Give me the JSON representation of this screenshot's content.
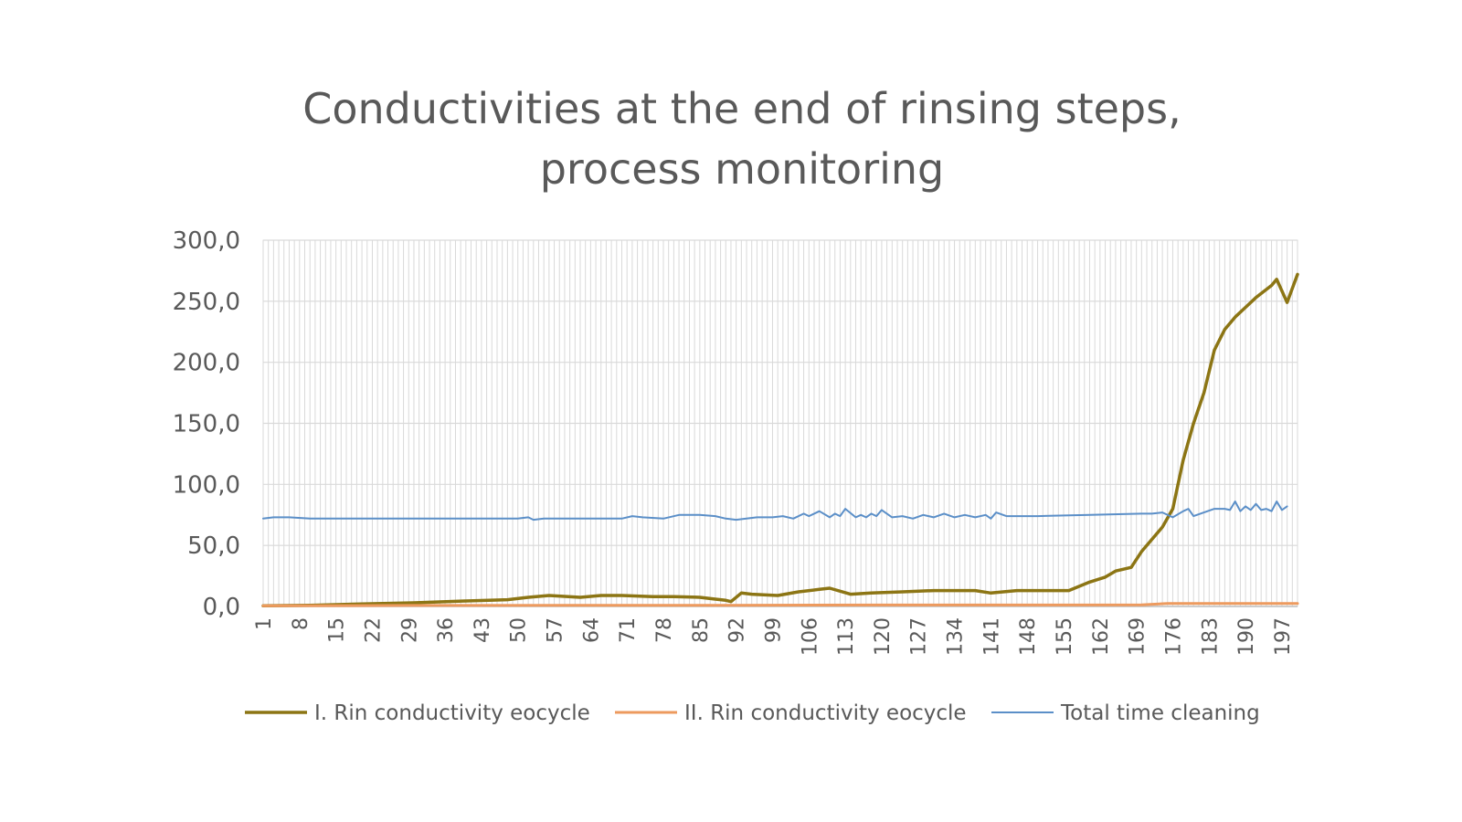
{
  "chart_data": {
    "type": "line",
    "title_lines": [
      "Conductivities at the end of rinsing steps,",
      "process monitoring"
    ],
    "xlabel": "",
    "ylabel": "",
    "ylim": [
      0,
      300
    ],
    "y_ticks": [
      "0,0",
      "50,0",
      "100,0",
      "150,0",
      "200,0",
      "250,0",
      "300,0"
    ],
    "x_range": [
      1,
      200
    ],
    "x_ticks": [
      1,
      8,
      15,
      22,
      29,
      36,
      43,
      50,
      57,
      64,
      71,
      78,
      85,
      92,
      99,
      106,
      113,
      120,
      127,
      134,
      141,
      148,
      155,
      162,
      169,
      176,
      183,
      190,
      197
    ],
    "grid": true,
    "legend_position": "bottom",
    "series": [
      {
        "name": "I. Rin conductivity eocycle",
        "color": "#8c7514",
        "x": [
          1,
          10,
          20,
          30,
          40,
          48,
          52,
          56,
          62,
          66,
          70,
          76,
          80,
          85,
          88,
          90,
          91,
          93,
          95,
          100,
          104,
          108,
          110,
          114,
          118,
          124,
          130,
          138,
          141,
          146,
          150,
          156,
          160,
          163,
          165,
          167,
          168,
          170,
          172,
          174,
          176,
          178,
          180,
          182,
          184,
          186,
          188,
          190,
          192,
          195,
          196,
          198,
          200
        ],
        "y": [
          0.5,
          1,
          2,
          3,
          4.5,
          5.5,
          7.5,
          9,
          7.5,
          9,
          9,
          8,
          8,
          7.5,
          6,
          5,
          4,
          11,
          10,
          9,
          12,
          14,
          15,
          10,
          11,
          12,
          13,
          13,
          11,
          13,
          13,
          13,
          20,
          24,
          29,
          31,
          32,
          45,
          55,
          65,
          80,
          120,
          150,
          175,
          210,
          227,
          237,
          245,
          253,
          263,
          268,
          249,
          272
        ]
      },
      {
        "name": "II. Rin conductivity eocycle",
        "color": "#ed9a5e",
        "x": [
          1,
          30,
          60,
          90,
          120,
          150,
          170,
          175,
          185,
          200
        ],
        "y": [
          0.5,
          0.8,
          1,
          1,
          1.2,
          1.2,
          1.3,
          2.5,
          2.5,
          2.5
        ]
      },
      {
        "name": "Total time cleaning",
        "color": "#5b8fc8",
        "x": [
          1,
          3,
          6,
          10,
          15,
          20,
          25,
          30,
          35,
          40,
          45,
          50,
          52,
          53,
          55,
          60,
          70,
          72,
          74,
          78,
          81,
          85,
          88,
          90,
          92,
          96,
          99,
          101,
          103,
          105,
          106,
          108,
          110,
          111,
          112,
          113,
          115,
          116,
          117,
          118,
          119,
          120,
          122,
          124,
          126,
          128,
          130,
          132,
          134,
          136,
          138,
          140,
          141,
          142,
          144,
          150,
          160,
          170,
          172,
          174,
          176,
          178,
          179,
          180,
          184,
          186,
          187,
          188,
          189,
          190,
          191,
          192,
          193,
          194,
          195,
          196,
          197,
          198
        ],
        "y": [
          72,
          73,
          73,
          72,
          72,
          72,
          72,
          72,
          72,
          72,
          72,
          72,
          73,
          71,
          72,
          72,
          72,
          74,
          73,
          72,
          75,
          75,
          74,
          72,
          71,
          73,
          73,
          74,
          72,
          76,
          74,
          78,
          73,
          76,
          74,
          80,
          73,
          75,
          73,
          76,
          74,
          79,
          73,
          74,
          72,
          75,
          73,
          76,
          73,
          75,
          73,
          75,
          72,
          77,
          74,
          74,
          75,
          76,
          76,
          77,
          73,
          78,
          80,
          74,
          80,
          80,
          79,
          86,
          78,
          82,
          79,
          84,
          79,
          80,
          78,
          86,
          79,
          82
        ]
      }
    ]
  }
}
